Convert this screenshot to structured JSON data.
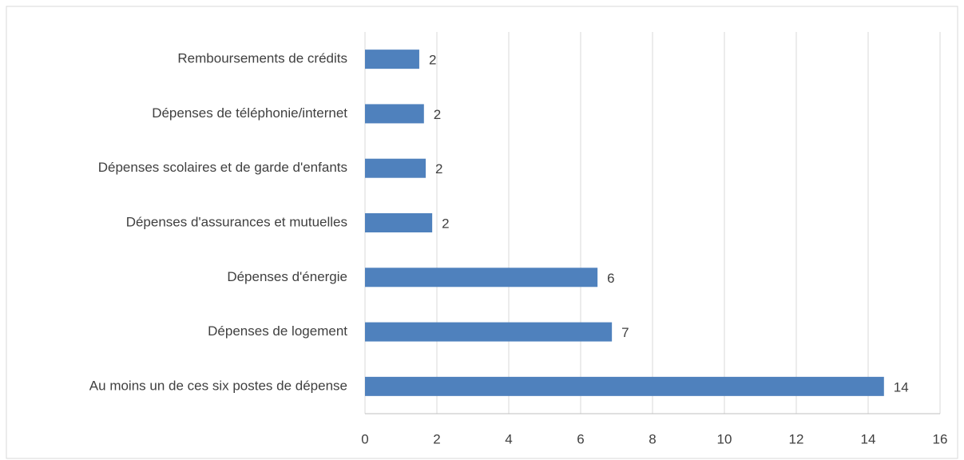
{
  "chart_data": {
    "type": "bar",
    "orientation": "horizontal",
    "categories": [
      "Remboursements de crédits",
      "Dépenses de téléphonie/internet",
      "Dépenses scolaires et de garde d'enfants",
      "Dépenses d'assurances et mutuelles",
      "Dépenses d'énergie",
      "Dépenses de logement",
      "Au moins un de ces six postes de dépense"
    ],
    "values": [
      1.51,
      1.64,
      1.69,
      1.87,
      6.47,
      6.87,
      14.44
    ],
    "value_labels": [
      "2",
      "2",
      "2",
      "2",
      "6",
      "7",
      "14"
    ],
    "color": "#4f81bd",
    "xlim": [
      0,
      16
    ],
    "xticks": [
      0,
      2,
      4,
      6,
      8,
      10,
      12,
      14,
      16
    ],
    "grid": true
  }
}
